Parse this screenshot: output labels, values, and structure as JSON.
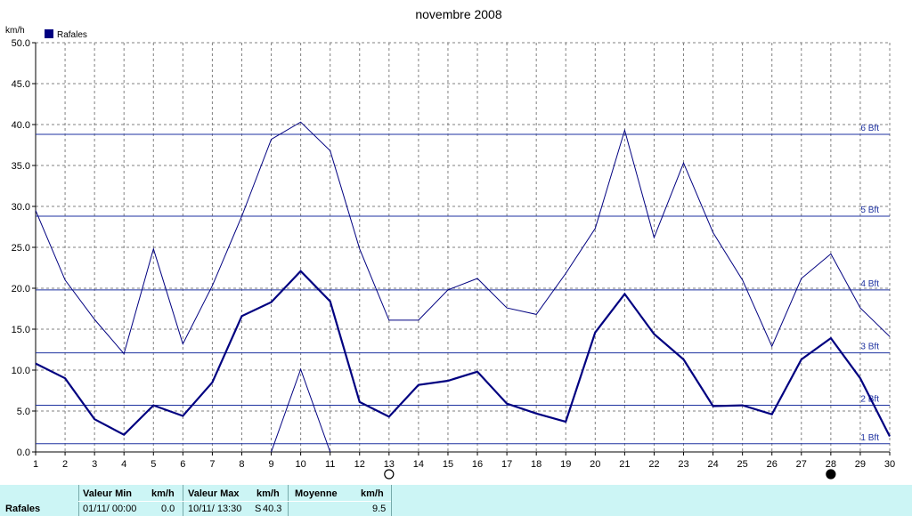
{
  "chart_data": {
    "type": "line",
    "title": "novembre 2008",
    "ylabel": "km/h",
    "legend": "Rafales",
    "legend_position": "top-left",
    "grid": true,
    "ylim": [
      0,
      50
    ],
    "ytick_labels": [
      "0.0",
      "5.0",
      "10.0",
      "15.0",
      "20.0",
      "25.0",
      "30.0",
      "35.0",
      "40.0",
      "45.0",
      "50.0"
    ],
    "x": [
      1,
      2,
      3,
      4,
      5,
      6,
      7,
      8,
      9,
      10,
      11,
      12,
      13,
      14,
      15,
      16,
      17,
      18,
      19,
      20,
      21,
      22,
      23,
      24,
      25,
      26,
      27,
      28,
      29,
      30
    ],
    "series": [
      {
        "name": "",
        "kind": "max",
        "values": [
          29.5,
          21.0,
          16.2,
          12.0,
          24.8,
          13.2,
          20.3,
          28.8,
          38.2,
          40.3,
          36.8,
          24.8,
          16.1,
          16.1,
          19.8,
          21.2,
          17.6,
          16.8,
          21.8,
          27.3,
          39.3,
          26.2,
          35.3,
          26.8,
          21.0,
          12.9,
          21.2,
          24.2,
          17.6,
          14.1
        ]
      },
      {
        "name": "Rafales",
        "kind": "mean",
        "values": [
          10.8,
          9.0,
          4.0,
          2.1,
          5.7,
          4.4,
          8.5,
          16.6,
          18.3,
          22.1,
          18.4,
          6.1,
          4.3,
          8.2,
          8.7,
          9.8,
          5.9,
          4.7,
          3.7,
          14.6,
          19.3,
          14.4,
          11.3,
          5.6,
          5.7,
          4.6,
          11.3,
          13.9,
          9.0,
          1.9
        ]
      },
      {
        "name": "",
        "kind": "min",
        "x": [
          9,
          10,
          11
        ],
        "values": [
          0.0,
          10.1,
          0.0
        ]
      }
    ],
    "beaufort": [
      {
        "label": "1 Bft",
        "value": 1.0
      },
      {
        "label": "2 Bft",
        "value": 5.7
      },
      {
        "label": "3 Bft",
        "value": 12.1
      },
      {
        "label": "4 Bft",
        "value": 19.8
      },
      {
        "label": "5 Bft",
        "value": 28.8
      },
      {
        "label": "6 Bft",
        "value": 38.8
      }
    ],
    "moon_phases": [
      {
        "day": 13,
        "phase": "full"
      },
      {
        "day": 28,
        "phase": "new"
      }
    ],
    "colors": {
      "line": "#000080",
      "beaufort": "#1e32a0",
      "grid": "#808080"
    }
  },
  "stats": {
    "row_label": "Rafales",
    "min_header": "Valeur Min",
    "min_unit": "km/h",
    "min_date": "01/11/  00:00",
    "min_value": "0.0",
    "max_header": "Valeur Max",
    "max_unit": "km/h",
    "max_date": "10/11/  13:30",
    "max_dir": "S",
    "max_value": "40.3",
    "mean_header": "Moyenne",
    "mean_unit": "km/h",
    "mean_value": "9.5"
  }
}
